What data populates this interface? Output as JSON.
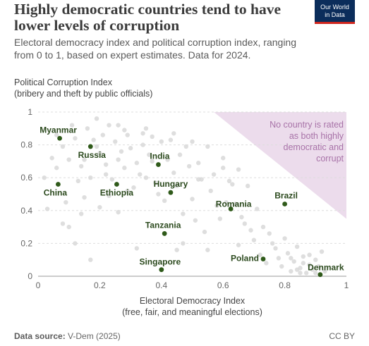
{
  "header": {
    "title": "Highly democratic countries tend to have lower levels of corruption",
    "subtitle": "Electoral democracy index and political corruption index, ranging from 0 to 1, based on expert estimates. Data for 2024.",
    "logo_line1": "Our World",
    "logo_line2": "in Data"
  },
  "footer": {
    "source_label": "Data source:",
    "source_value": "V-Dem (2025)",
    "license": "CC BY"
  },
  "colors": {
    "highlight": "#2f5a1a",
    "background_point": "#d8d8d8",
    "region": "#ecdcec",
    "region_text": "#a873a8"
  },
  "chart_data": {
    "type": "scatter",
    "ylabel_line1": "Political Corruption Index",
    "ylabel_line2": "(bribery and theft by public officials)",
    "xlabel_line1": "Electoral Democracy Index",
    "xlabel_line2": "(free, fair, and meaningful elections)",
    "xlim": [
      0,
      1
    ],
    "ylim": [
      0,
      1
    ],
    "xticks": [
      "0",
      "0.2",
      "0.4",
      "0.6",
      "0.8",
      "1"
    ],
    "yticks": [
      "0",
      "0.2",
      "0.4",
      "0.6",
      "0.8",
      "1"
    ],
    "grid": "horizontal-dashed",
    "shaded_region": {
      "polygon": [
        [
          0.57,
          1
        ],
        [
          1,
          1
        ],
        [
          1,
          0.35
        ]
      ],
      "annotation_line1": "No country is rated",
      "annotation_line2": "as both highly",
      "annotation_line3": "democratic and",
      "annotation_line4": "corrupt"
    },
    "highlighted": [
      {
        "name": "Myanmar",
        "x": 0.07,
        "y": 0.84
      },
      {
        "name": "Russia",
        "x": 0.17,
        "y": 0.79
      },
      {
        "name": "India",
        "x": 0.39,
        "y": 0.68
      },
      {
        "name": "China",
        "x": 0.065,
        "y": 0.56
      },
      {
        "name": "Ethiopia",
        "x": 0.255,
        "y": 0.56
      },
      {
        "name": "Hungary",
        "x": 0.43,
        "y": 0.51
      },
      {
        "name": "Brazil",
        "x": 0.8,
        "y": 0.44
      },
      {
        "name": "Romania",
        "x": 0.625,
        "y": 0.41
      },
      {
        "name": "Tanzania",
        "x": 0.41,
        "y": 0.26
      },
      {
        "name": "Poland",
        "x": 0.73,
        "y": 0.105
      },
      {
        "name": "Singapore",
        "x": 0.4,
        "y": 0.04
      },
      {
        "name": "Denmark",
        "x": 0.915,
        "y": 0.01
      }
    ],
    "others": [
      [
        0.02,
        0.6
      ],
      [
        0.03,
        0.41
      ],
      [
        0.045,
        0.72
      ],
      [
        0.06,
        0.66
      ],
      [
        0.08,
        0.79
      ],
      [
        0.09,
        0.45
      ],
      [
        0.1,
        0.3
      ],
      [
        0.11,
        0.92
      ],
      [
        0.12,
        0.84
      ],
      [
        0.13,
        0.58
      ],
      [
        0.14,
        0.38
      ],
      [
        0.15,
        0.71
      ],
      [
        0.16,
        0.9
      ],
      [
        0.17,
        0.6
      ],
      [
        0.18,
        0.83
      ],
      [
        0.19,
        0.96
      ],
      [
        0.2,
        0.75
      ],
      [
        0.21,
        0.86
      ],
      [
        0.22,
        0.68
      ],
      [
        0.23,
        0.49
      ],
      [
        0.24,
        0.59
      ],
      [
        0.25,
        0.82
      ],
      [
        0.26,
        0.92
      ],
      [
        0.27,
        0.76
      ],
      [
        0.28,
        0.66
      ],
      [
        0.29,
        0.86
      ],
      [
        0.3,
        0.78
      ],
      [
        0.31,
        0.54
      ],
      [
        0.32,
        0.69
      ],
      [
        0.33,
        0.62
      ],
      [
        0.34,
        0.8
      ],
      [
        0.35,
        0.9
      ],
      [
        0.36,
        0.74
      ],
      [
        0.37,
        0.7
      ],
      [
        0.38,
        0.57
      ],
      [
        0.39,
        0.5
      ],
      [
        0.4,
        0.82
      ],
      [
        0.41,
        0.46
      ],
      [
        0.42,
        0.71
      ],
      [
        0.43,
        0.83
      ],
      [
        0.44,
        0.63
      ],
      [
        0.45,
        0.55
      ],
      [
        0.46,
        0.74
      ],
      [
        0.47,
        0.38
      ],
      [
        0.48,
        0.79
      ],
      [
        0.49,
        0.67
      ],
      [
        0.5,
        0.47
      ],
      [
        0.51,
        0.34
      ],
      [
        0.52,
        0.69
      ],
      [
        0.53,
        0.59
      ],
      [
        0.54,
        0.27
      ],
      [
        0.55,
        0.79
      ],
      [
        0.56,
        0.52
      ],
      [
        0.57,
        0.62
      ],
      [
        0.58,
        0.43
      ],
      [
        0.59,
        0.35
      ],
      [
        0.6,
        0.66
      ],
      [
        0.61,
        0.45
      ],
      [
        0.62,
        0.58
      ],
      [
        0.63,
        0.56
      ],
      [
        0.64,
        0.44
      ],
      [
        0.65,
        0.65
      ],
      [
        0.66,
        0.36
      ],
      [
        0.67,
        0.32
      ],
      [
        0.68,
        0.55
      ],
      [
        0.69,
        0.28
      ],
      [
        0.7,
        0.22
      ],
      [
        0.71,
        0.41
      ],
      [
        0.72,
        0.13
      ],
      [
        0.73,
        0.3
      ],
      [
        0.74,
        0.08
      ],
      [
        0.75,
        0.26
      ],
      [
        0.76,
        0.2
      ],
      [
        0.77,
        0.17
      ],
      [
        0.78,
        0.11
      ],
      [
        0.79,
        0.06
      ],
      [
        0.8,
        0.23
      ],
      [
        0.81,
        0.14
      ],
      [
        0.82,
        0.03
      ],
      [
        0.83,
        0.09
      ],
      [
        0.84,
        0.18
      ],
      [
        0.85,
        0.05
      ],
      [
        0.86,
        0.12
      ],
      [
        0.87,
        0.02
      ],
      [
        0.88,
        0.07
      ],
      [
        0.89,
        0.04
      ],
      [
        0.9,
        0.1
      ],
      [
        0.91,
        0.06
      ],
      [
        0.92,
        0.15
      ],
      [
        0.93,
        0.03
      ],
      [
        0.88,
        0.13
      ],
      [
        0.86,
        0.08
      ],
      [
        0.84,
        0.04
      ],
      [
        0.82,
        0.11
      ],
      [
        0.85,
        0.02
      ],
      [
        0.9,
        0.02
      ],
      [
        0.15,
        0.48
      ],
      [
        0.12,
        0.2
      ],
      [
        0.2,
        0.42
      ],
      [
        0.26,
        0.39
      ],
      [
        0.32,
        0.17
      ],
      [
        0.47,
        0.2
      ],
      [
        0.55,
        0.16
      ],
      [
        0.65,
        0.19
      ],
      [
        0.06,
        0.86
      ],
      [
        0.1,
        0.71
      ],
      [
        0.19,
        0.79
      ],
      [
        0.23,
        0.92
      ],
      [
        0.28,
        0.89
      ],
      [
        0.34,
        0.87
      ],
      [
        0.37,
        0.85
      ],
      [
        0.44,
        0.87
      ],
      [
        0.5,
        0.82
      ],
      [
        0.14,
        0.67
      ],
      [
        0.22,
        0.62
      ],
      [
        0.26,
        0.71
      ],
      [
        0.35,
        0.6
      ],
      [
        0.29,
        0.52
      ],
      [
        0.52,
        0.59
      ],
      [
        0.6,
        0.72
      ],
      [
        0.08,
        0.32
      ],
      [
        0.17,
        0.1
      ],
      [
        0.45,
        0.16
      ]
    ]
  }
}
